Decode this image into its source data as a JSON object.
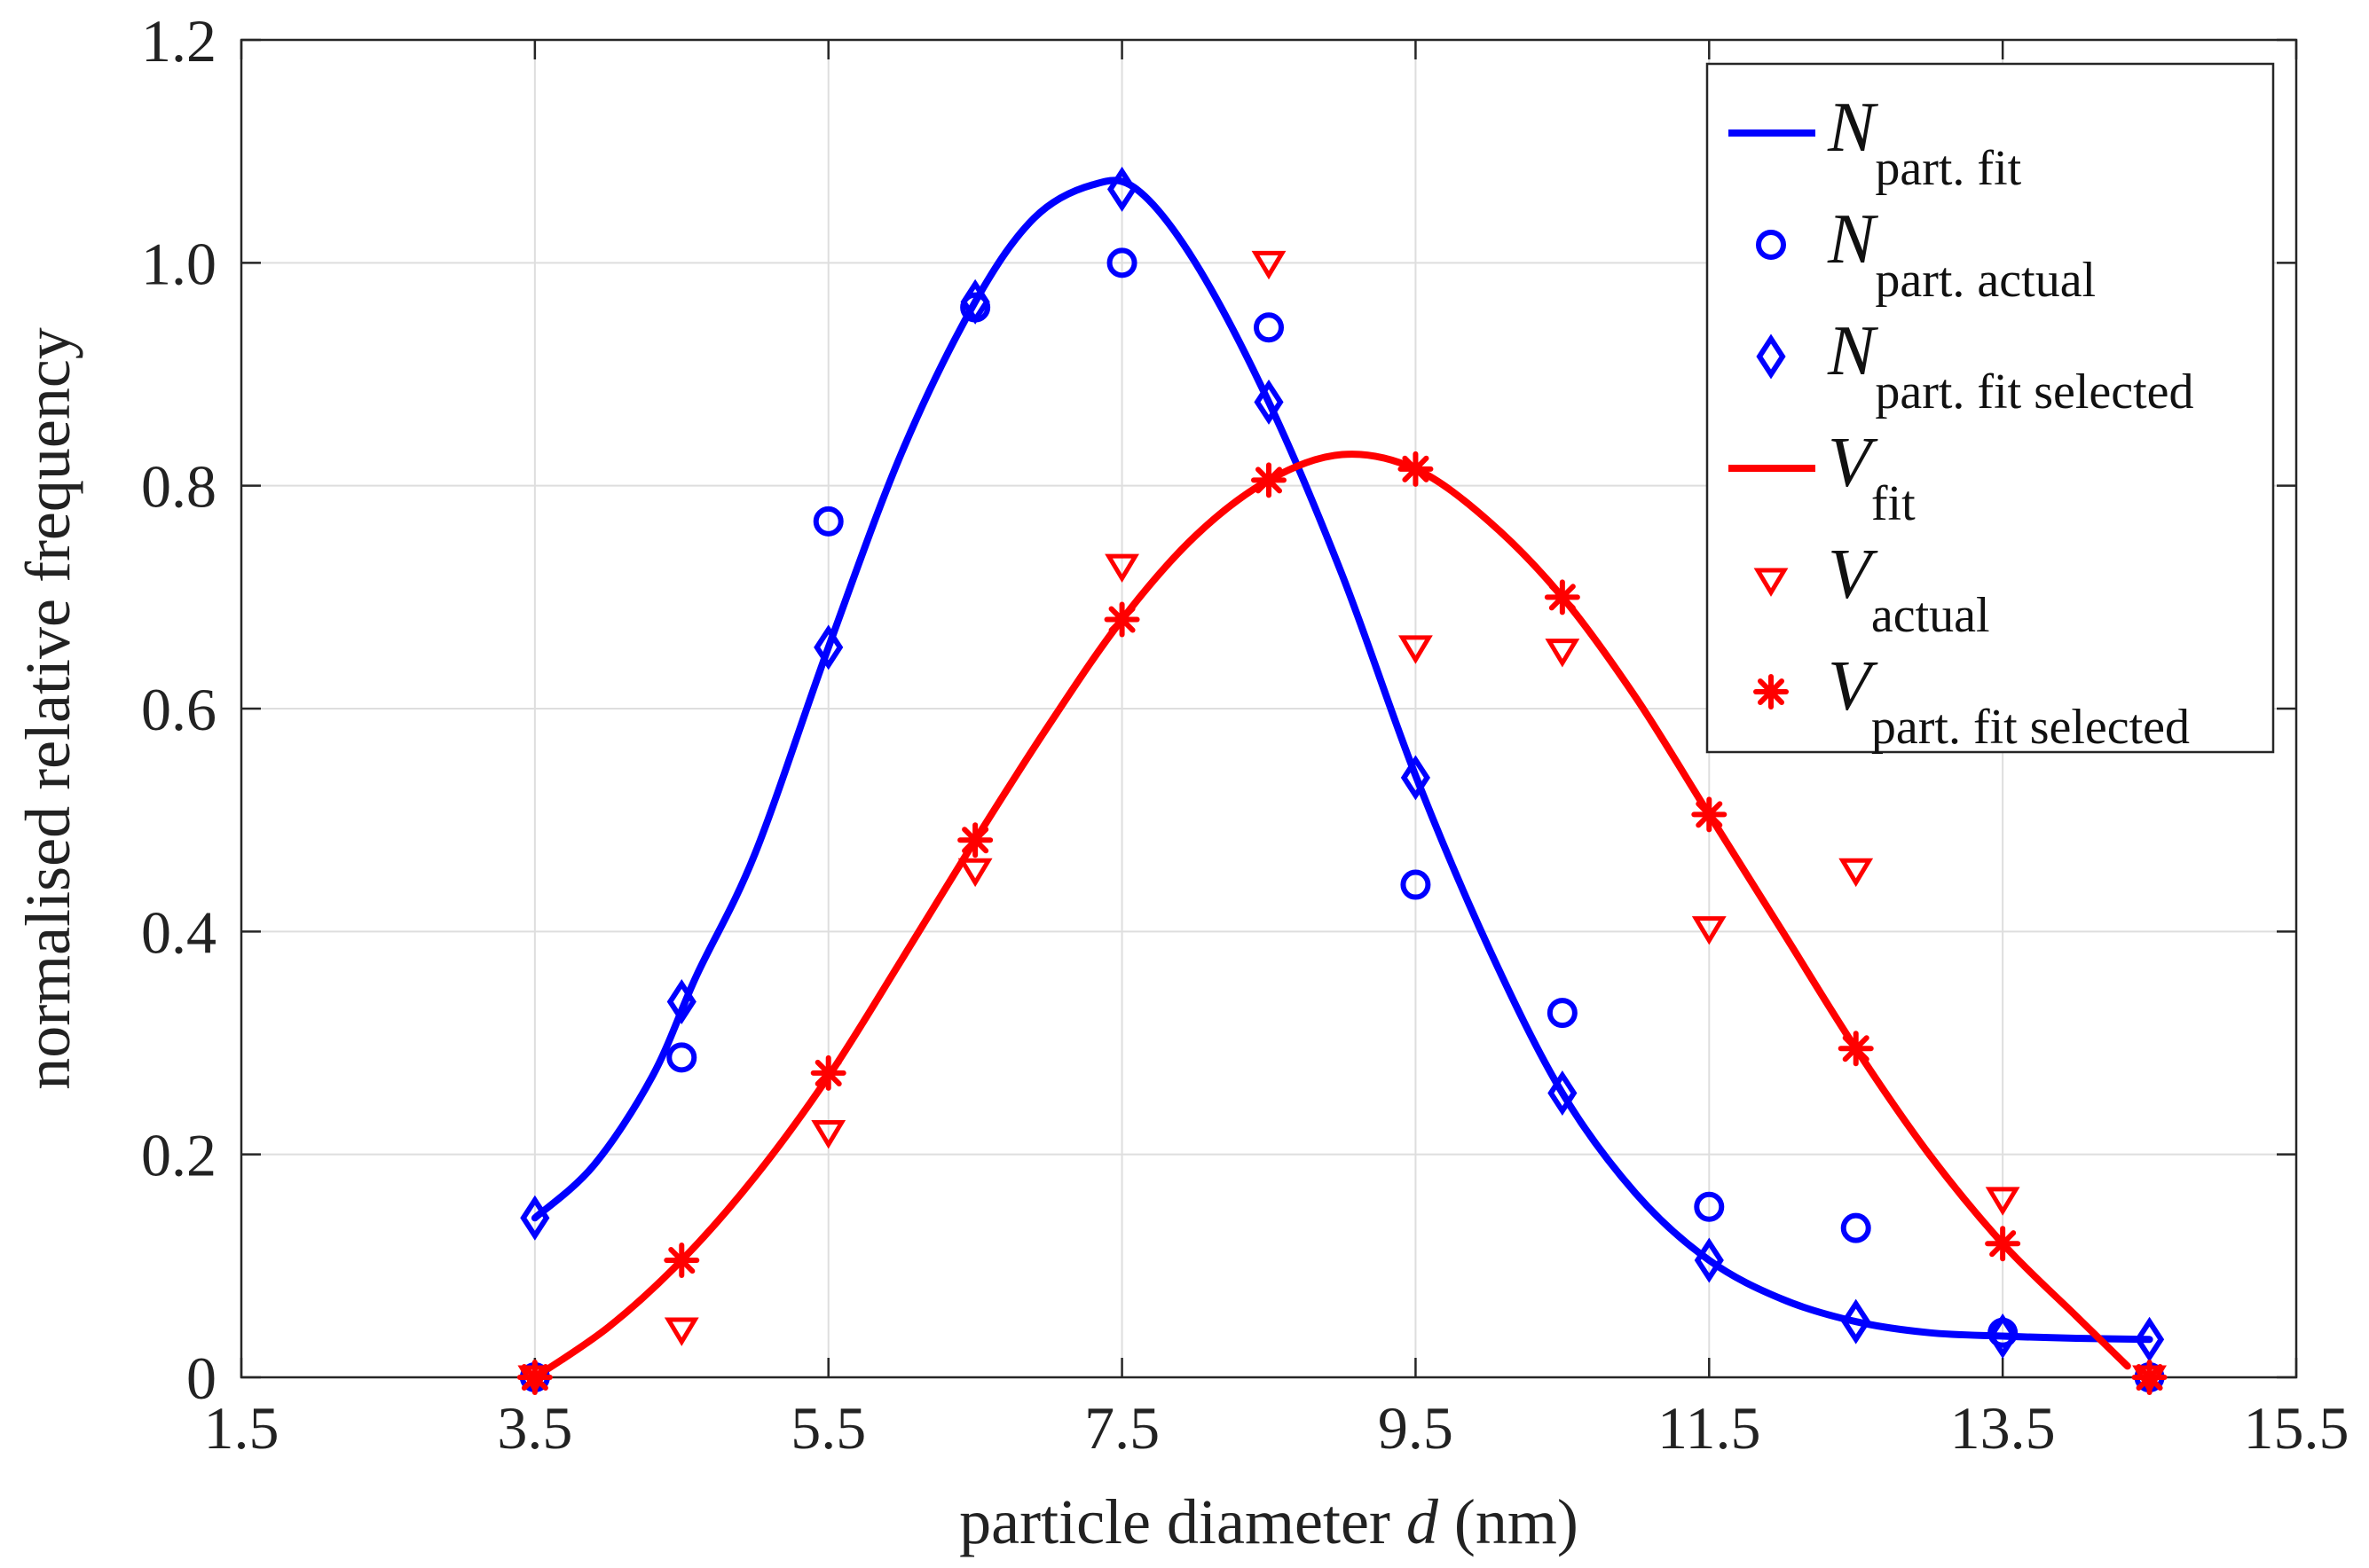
{
  "chart_data": {
    "type": "line",
    "xlabel_prefix": "particle diameter ",
    "xlabel_var": "d",
    "xlabel_suffix": " (nm)",
    "ylabel": "normalised relative frequency",
    "xlim": [
      1.5,
      15.5
    ],
    "ylim": [
      0,
      1.2
    ],
    "xticks": [
      "1.5",
      "3.5",
      "5.5",
      "7.5",
      "9.5",
      "11.5",
      "13.5",
      "15.5"
    ],
    "yticks": [
      "0",
      "0.2",
      "0.4",
      "0.6",
      "0.8",
      "1.0",
      "1.2"
    ],
    "grid": true,
    "legend_position": "top-right",
    "colors": {
      "blue": "#0000ff",
      "red": "#ff0000"
    },
    "x": [
      3.5,
      4.5,
      5.5,
      6.5,
      7.5,
      8.5,
      9.5,
      10.5,
      11.5,
      12.5,
      13.5,
      14.5
    ],
    "fit_curves": [
      {
        "name": "N part. fit",
        "color": "#0000ff",
        "points": [
          [
            3.5,
            0.143
          ],
          [
            3.9,
            0.19
          ],
          [
            4.3,
            0.27
          ],
          [
            4.6,
            0.36
          ],
          [
            5.0,
            0.47
          ],
          [
            5.5,
            0.655
          ],
          [
            6.0,
            0.83
          ],
          [
            6.5,
            0.965
          ],
          [
            6.9,
            1.04
          ],
          [
            7.3,
            1.07
          ],
          [
            7.6,
            1.066
          ],
          [
            8.0,
            1.0
          ],
          [
            8.5,
            0.875
          ],
          [
            9.0,
            0.72
          ],
          [
            9.5,
            0.54
          ],
          [
            10.0,
            0.385
          ],
          [
            10.5,
            0.255
          ],
          [
            11.0,
            0.165
          ],
          [
            11.5,
            0.105
          ],
          [
            12.0,
            0.07
          ],
          [
            12.5,
            0.05
          ],
          [
            13.0,
            0.04
          ],
          [
            13.5,
            0.037
          ],
          [
            14.0,
            0.035
          ],
          [
            14.5,
            0.034
          ]
        ]
      },
      {
        "name": "V fit",
        "color": "#ff0000",
        "points": [
          [
            3.5,
            0.0
          ],
          [
            4.0,
            0.045
          ],
          [
            4.5,
            0.105
          ],
          [
            5.0,
            0.18
          ],
          [
            5.5,
            0.27
          ],
          [
            6.0,
            0.375
          ],
          [
            6.5,
            0.482
          ],
          [
            7.0,
            0.585
          ],
          [
            7.5,
            0.68
          ],
          [
            8.0,
            0.755
          ],
          [
            8.5,
            0.805
          ],
          [
            9.0,
            0.828
          ],
          [
            9.5,
            0.815
          ],
          [
            10.0,
            0.768
          ],
          [
            10.5,
            0.7
          ],
          [
            11.0,
            0.61
          ],
          [
            11.5,
            0.505
          ],
          [
            12.0,
            0.4
          ],
          [
            12.5,
            0.295
          ],
          [
            13.0,
            0.2
          ],
          [
            13.5,
            0.12
          ],
          [
            14.0,
            0.055
          ],
          [
            14.35,
            0.01
          ]
        ]
      }
    ],
    "series": [
      {
        "name": "N part. actual",
        "marker": "circle",
        "color": "#0000ff",
        "values": [
          0.0,
          0.287,
          0.768,
          0.96,
          1.0,
          0.942,
          0.442,
          0.327,
          0.153,
          0.134,
          0.04,
          0.0
        ]
      },
      {
        "name": "N part. fit selected",
        "marker": "diamond",
        "color": "#0000ff",
        "values": [
          0.143,
          0.337,
          0.655,
          0.965,
          1.066,
          0.875,
          0.538,
          0.255,
          0.105,
          0.05,
          0.037,
          0.034
        ]
      },
      {
        "name": "V actual",
        "marker": "triangle-down",
        "color": "#ff0000",
        "values": [
          0.0,
          0.043,
          0.22,
          0.455,
          0.728,
          1.0,
          0.655,
          0.652,
          0.403,
          0.455,
          0.16,
          0.0
        ]
      },
      {
        "name": "V part. fit selected",
        "marker": "asterisk",
        "color": "#ff0000",
        "values": [
          0.0,
          0.105,
          0.273,
          0.482,
          0.68,
          0.805,
          0.815,
          0.7,
          0.505,
          0.295,
          0.12,
          0.0
        ]
      }
    ],
    "legend": [
      {
        "main": "N",
        "sub": "part. fit",
        "kind": "line",
        "color": "#0000ff"
      },
      {
        "main": "N",
        "sub": "part. actual",
        "kind": "circle",
        "color": "#0000ff"
      },
      {
        "main": "N",
        "sub": "part. fit selected",
        "kind": "diamond",
        "color": "#0000ff"
      },
      {
        "main": "V",
        "sub": "fit",
        "kind": "line",
        "color": "#ff0000"
      },
      {
        "main": "V",
        "sub": "actual",
        "kind": "triangle-down",
        "color": "#ff0000"
      },
      {
        "main": "V",
        "sub": "part. fit selected",
        "kind": "asterisk",
        "color": "#ff0000"
      }
    ]
  }
}
